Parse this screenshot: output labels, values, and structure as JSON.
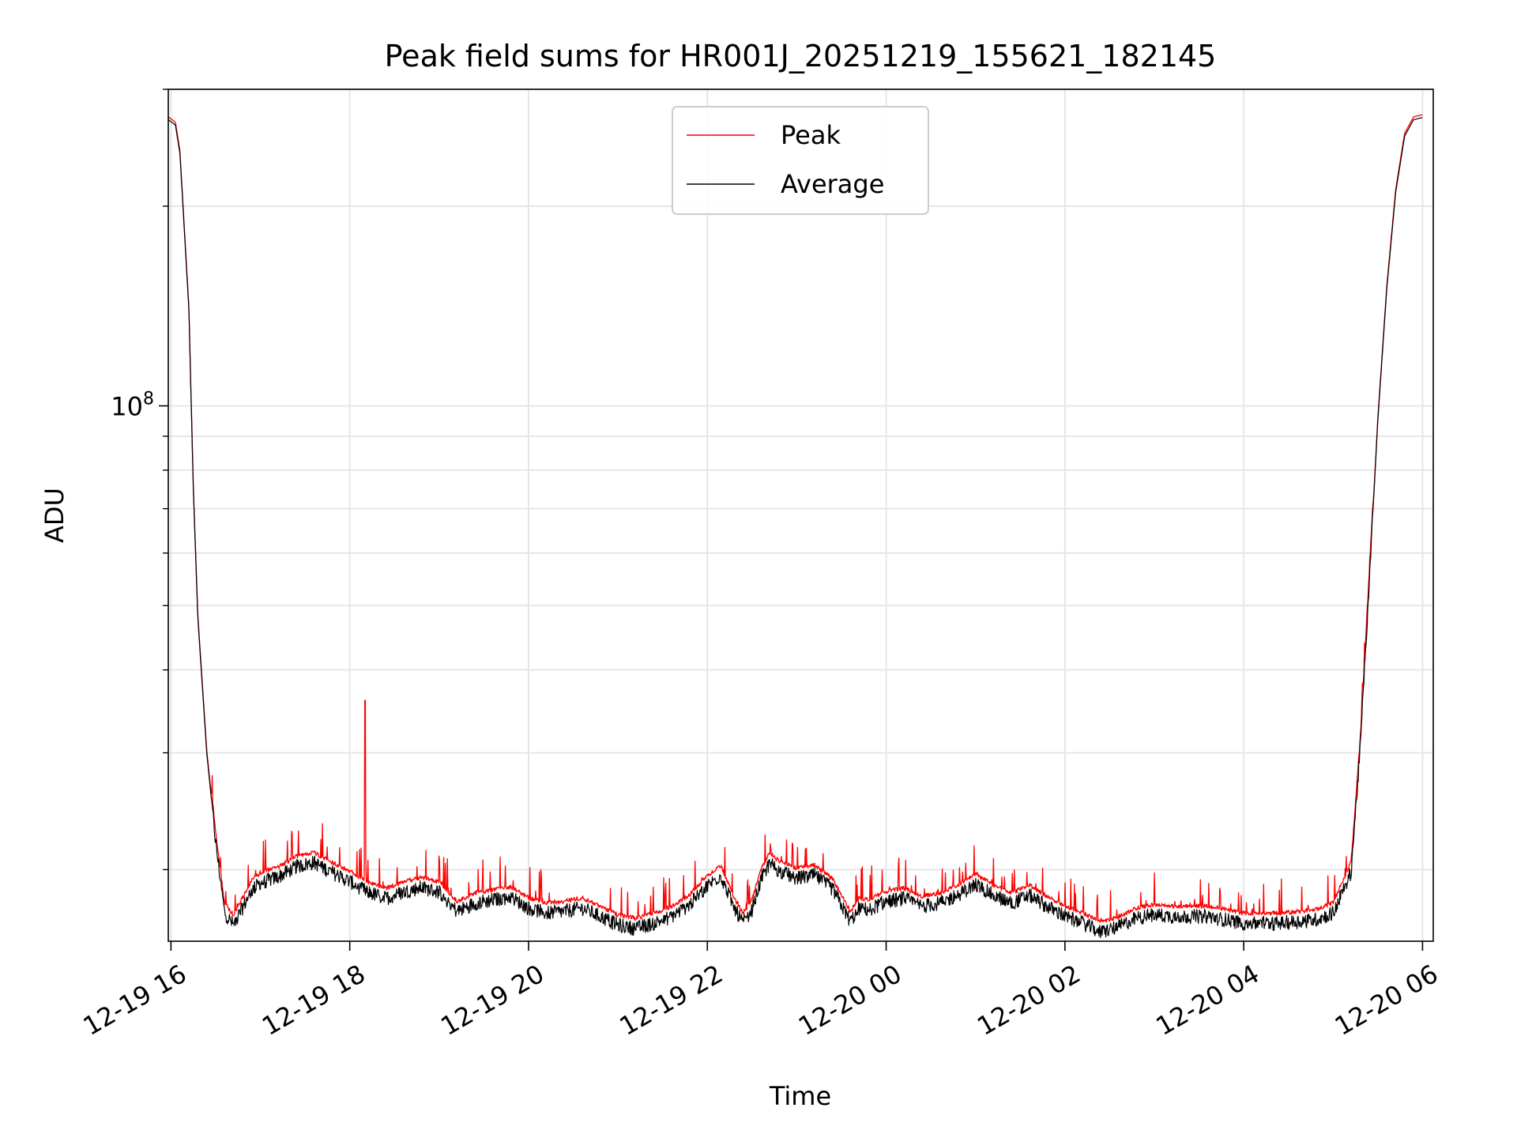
{
  "chart_data": {
    "type": "line",
    "title": "Peak field sums for HR001J_20251219_155621_182145",
    "xlabel": "Time",
    "ylabel": "ADU",
    "y_scale": "log",
    "ylim": [
      15600000,
      300000000
    ],
    "y_major_ticks": [
      {
        "value": 100000000,
        "base": "10",
        "exp": "8"
      }
    ],
    "y_minor_ticks": [
      20000000,
      30000000,
      40000000,
      50000000,
      60000000,
      70000000,
      80000000,
      90000000,
      200000000,
      300000000
    ],
    "xlim_hours": [
      15.97,
      30.12
    ],
    "x_ticks": [
      {
        "hour": 16,
        "label": "12-19 16"
      },
      {
        "hour": 18,
        "label": "12-19 18"
      },
      {
        "hour": 20,
        "label": "12-19 20"
      },
      {
        "hour": 22,
        "label": "12-19 22"
      },
      {
        "hour": 24,
        "label": "12-20 00"
      },
      {
        "hour": 26,
        "label": "12-20 02"
      },
      {
        "hour": 28,
        "label": "12-20 04"
      },
      {
        "hour": 30,
        "label": "12-20 06"
      }
    ],
    "grid": true,
    "legend_position": "top-center",
    "series": [
      {
        "name": "Peak",
        "color": "#ff0000",
        "line_width": "thin"
      },
      {
        "name": "Average",
        "color": "#000000",
        "line_width": "thin"
      }
    ],
    "average_profile": {
      "hours": [
        15.97,
        16.05,
        16.1,
        16.2,
        16.25,
        16.3,
        16.4,
        16.5,
        16.6,
        16.7,
        16.8,
        16.9,
        17.0,
        17.2,
        17.4,
        17.6,
        17.8,
        18.0,
        18.2,
        18.4,
        18.6,
        18.8,
        19.0,
        19.2,
        19.4,
        19.6,
        19.8,
        20.0,
        20.2,
        20.4,
        20.6,
        20.8,
        21.0,
        21.2,
        21.4,
        21.6,
        21.8,
        22.0,
        22.15,
        22.3,
        22.4,
        22.5,
        22.6,
        22.7,
        22.8,
        23.0,
        23.2,
        23.4,
        23.6,
        23.7,
        23.8,
        24.0,
        24.2,
        24.4,
        24.6,
        24.8,
        25.0,
        25.2,
        25.4,
        25.6,
        25.8,
        26.0,
        26.2,
        26.4,
        26.6,
        26.8,
        27.0,
        27.2,
        27.4,
        27.6,
        27.8,
        28.0,
        28.2,
        28.4,
        28.6,
        28.8,
        29.0,
        29.2,
        29.3,
        29.4,
        29.5,
        29.6,
        29.7,
        29.8,
        29.9,
        30.0
      ],
      "adu": [
        270000000,
        265000000,
        240000000,
        140000000,
        75000000,
        48000000,
        30000000,
        22000000,
        17200000,
        16500000,
        17500000,
        18600000,
        19100000,
        19500000,
        20200000,
        20500000,
        19800000,
        19200000,
        18500000,
        18100000,
        18500000,
        18800000,
        18500000,
        17300000,
        17800000,
        18000000,
        18200000,
        17500000,
        17200000,
        17300000,
        17500000,
        17000000,
        16500000,
        16300000,
        16600000,
        17000000,
        17700000,
        18900000,
        19600000,
        17500000,
        16600000,
        17400000,
        19300000,
        20500000,
        19900000,
        19400000,
        19600000,
        18700000,
        16700000,
        17500000,
        17400000,
        17900000,
        18100000,
        17600000,
        17800000,
        18300000,
        19000000,
        18300000,
        17800000,
        18300000,
        17600000,
        17000000,
        16600000,
        16100000,
        16400000,
        16900000,
        17100000,
        17000000,
        17000000,
        17000000,
        16800000,
        16600000,
        16600000,
        16600000,
        16700000,
        16800000,
        17200000,
        19800000,
        30000000,
        53000000,
        95000000,
        150000000,
        210000000,
        255000000,
        270000000,
        272000000
      ]
    }
  }
}
